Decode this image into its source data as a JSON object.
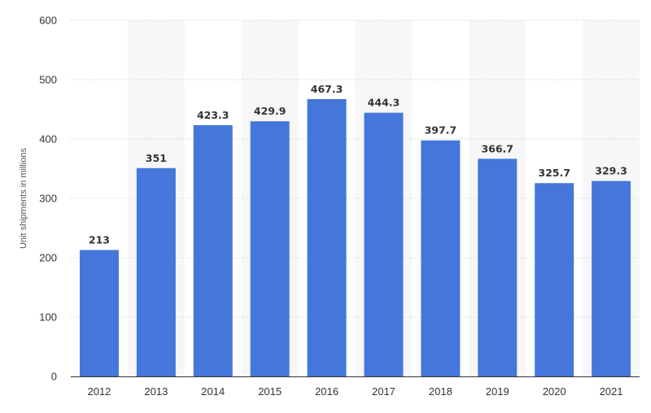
{
  "chart_data": {
    "type": "bar",
    "title": "",
    "xlabel": "",
    "ylabel": "Unit shipments in millions",
    "categories": [
      "2012",
      "2013",
      "2014",
      "2015",
      "2016",
      "2017",
      "2018",
      "2019",
      "2020",
      "2021"
    ],
    "values": [
      213,
      351,
      423.3,
      429.9,
      467.3,
      444.3,
      397.7,
      366.7,
      325.7,
      329.3
    ],
    "value_labels": [
      "213",
      "351",
      "423.3",
      "429.9",
      "467.3",
      "444.3",
      "397.7",
      "366.7",
      "325.7",
      "329.3"
    ],
    "ylim": [
      0,
      600
    ],
    "yticks": [
      0,
      100,
      200,
      300,
      400,
      500,
      600
    ],
    "grid": true,
    "bar_color": "#4577db",
    "alternate_band_color": "#f7f7f7"
  }
}
